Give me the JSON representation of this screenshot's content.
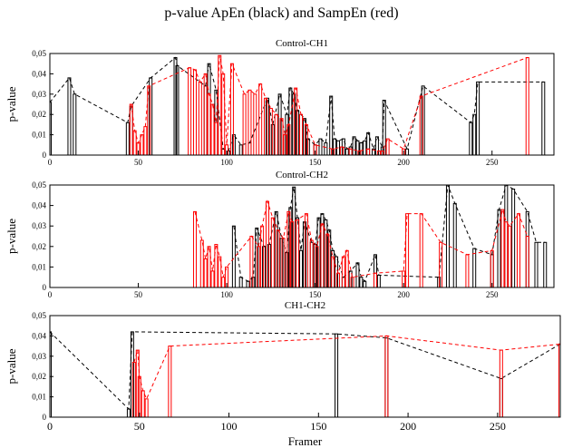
{
  "title": "p-value ApEn (black) and SampEn (red)",
  "colors": {
    "apen": "#000000",
    "sampen": "#ff0000"
  },
  "chart_data": [
    {
      "type": "bar",
      "panel_title": "Control-CH1",
      "ylabel": "p-value",
      "xlabel": "",
      "xlim": [
        0,
        285
      ],
      "ylim": [
        0,
        0.05
      ],
      "xticks": [
        0,
        50,
        100,
        150,
        200,
        250
      ],
      "yticks": [
        "0",
        "0,01",
        "0,02",
        "0,03",
        "0,04",
        "0,05"
      ],
      "series": [
        {
          "values": [
            [
              0,
              0.026
            ],
            [
              11,
              0.038
            ],
            [
              14,
              0.03
            ],
            [
              44,
              0.016
            ],
            [
              46,
              0.024
            ],
            [
              57,
              0.038
            ],
            [
              71,
              0.048
            ],
            [
              72,
              0.044
            ],
            [
              88,
              0.034
            ],
            [
              90,
              0.045
            ],
            [
              94,
              0.032
            ],
            [
              98,
              0.003
            ],
            [
              101,
              0.002
            ],
            [
              104,
              0.01
            ],
            [
              108,
              0.005
            ],
            [
              113,
              0.006
            ],
            [
              123,
              0.028
            ],
            [
              126,
              0.015
            ],
            [
              130,
              0.03
            ],
            [
              134,
              0.02
            ],
            [
              136,
              0.033
            ],
            [
              138,
              0.03
            ],
            [
              140,
              0.022
            ],
            [
              144,
              0.018
            ],
            [
              146,
              0.008
            ],
            [
              150,
              0.005
            ],
            [
              153,
              0.008
            ],
            [
              156,
              0.006
            ],
            [
              159,
              0.029
            ],
            [
              161,
              0.008
            ],
            [
              163,
              0.007
            ],
            [
              166,
              0.008
            ],
            [
              168,
              0.003
            ],
            [
              170,
              0.004
            ],
            [
              172,
              0.009
            ],
            [
              174,
              0.007
            ],
            [
              176,
              0.006
            ],
            [
              178,
              0.007
            ],
            [
              180,
              0.011
            ],
            [
              183,
              0.003
            ],
            [
              185,
              0.009
            ],
            [
              188,
              0.004
            ],
            [
              189,
              0.027
            ],
            [
              202,
              0.003
            ],
            [
              211,
              0.034
            ],
            [
              238,
              0.016
            ],
            [
              240,
              0.02
            ],
            [
              242,
              0.036
            ],
            [
              279,
              0.036
            ]
          ]
        },
        {
          "values": [
            [
              46,
              0.025
            ],
            [
              48,
              0.012
            ],
            [
              50,
              0.006
            ],
            [
              52,
              0.01
            ],
            [
              54,
              0.014
            ],
            [
              56,
              0.034
            ],
            [
              79,
              0.043
            ],
            [
              82,
              0.042
            ],
            [
              85,
              0.036
            ],
            [
              88,
              0.04
            ],
            [
              90,
              0.03
            ],
            [
              92,
              0.025
            ],
            [
              94,
              0.016
            ],
            [
              96,
              0.049
            ],
            [
              98,
              0.04
            ],
            [
              100,
              0.005
            ],
            [
              103,
              0.045
            ],
            [
              110,
              0.03
            ],
            [
              113,
              0.032
            ],
            [
              116,
              0.03
            ],
            [
              119,
              0.035
            ],
            [
              122,
              0.028
            ],
            [
              125,
              0.023
            ],
            [
              128,
              0.02
            ],
            [
              131,
              0.018
            ],
            [
              133,
              0.01
            ],
            [
              135,
              0.015
            ],
            [
              139,
              0.033
            ],
            [
              142,
              0.02
            ],
            [
              145,
              0.015
            ],
            [
              150,
              0.005
            ],
            [
              160,
              0.003
            ],
            [
              165,
              0.004
            ],
            [
              170,
              0.003
            ],
            [
              175,
              0.002
            ],
            [
              180,
              0.003
            ],
            [
              186,
              0.002
            ],
            [
              188,
              0.002
            ],
            [
              191,
              0.008
            ],
            [
              200,
              0.003
            ],
            [
              210,
              0.029
            ],
            [
              270,
              0.048
            ]
          ]
        }
      ]
    },
    {
      "type": "bar",
      "panel_title": "Control-CH2",
      "ylabel": "p-value",
      "xlabel": "",
      "xlim": [
        0,
        285
      ],
      "ylim": [
        0,
        0.05
      ],
      "xticks": [
        0,
        50,
        100,
        150,
        200,
        250
      ],
      "yticks": [
        "0",
        "0,01",
        "0,02",
        "0,03",
        "0,04",
        "0,05"
      ],
      "series": [
        {
          "values": [
            [
              104,
              0.03
            ],
            [
              108,
              0.005
            ],
            [
              112,
              0.003
            ],
            [
              115,
              0.005
            ],
            [
              117,
              0.029
            ],
            [
              121,
              0.02
            ],
            [
              124,
              0.021
            ],
            [
              128,
              0.037
            ],
            [
              131,
              0.024
            ],
            [
              134,
              0.017
            ],
            [
              136,
              0.039
            ],
            [
              138,
              0.049
            ],
            [
              140,
              0.034
            ],
            [
              142,
              0.018
            ],
            [
              144,
              0.032
            ],
            [
              148,
              0.022
            ],
            [
              150,
              0.021
            ],
            [
              152,
              0.034
            ],
            [
              154,
              0.036
            ],
            [
              156,
              0.033
            ],
            [
              158,
              0.028
            ],
            [
              160,
              0.018
            ],
            [
              162,
              0.015
            ],
            [
              166,
              0.005
            ],
            [
              170,
              0.008
            ],
            [
              174,
              0.012
            ],
            [
              176,
              0.005
            ],
            [
              178,
              0.003
            ],
            [
              184,
              0.016
            ],
            [
              186,
              0.006
            ],
            [
              220,
              0.005
            ],
            [
              225,
              0.05
            ],
            [
              229,
              0.041
            ],
            [
              240,
              0.019
            ],
            [
              250,
              0.016
            ],
            [
              254,
              0.038
            ],
            [
              258,
              0.05
            ],
            [
              262,
              0.048
            ],
            [
              270,
              0.037
            ],
            [
              275,
              0.022
            ],
            [
              280,
              0.022
            ]
          ]
        },
        {
          "values": [
            [
              82,
              0.037
            ],
            [
              86,
              0.023
            ],
            [
              88,
              0.014
            ],
            [
              90,
              0.02
            ],
            [
              92,
              0.008
            ],
            [
              94,
              0.021
            ],
            [
              96,
              0.015
            ],
            [
              98,
              0.005
            ],
            [
              100,
              0.01
            ],
            [
              114,
              0.025
            ],
            [
              118,
              0.02
            ],
            [
              120,
              0.03
            ],
            [
              123,
              0.042
            ],
            [
              126,
              0.034
            ],
            [
              129,
              0.028
            ],
            [
              132,
              0.024
            ],
            [
              135,
              0.037
            ],
            [
              137,
              0.032
            ],
            [
              140,
              0.033
            ],
            [
              145,
              0.036
            ],
            [
              148,
              0.023
            ],
            [
              151,
              0.02
            ],
            [
              154,
              0.031
            ],
            [
              157,
              0.026
            ],
            [
              160,
              0.015
            ],
            [
              163,
              0.007
            ],
            [
              166,
              0.015
            ],
            [
              168,
              0.018
            ],
            [
              171,
              0.005
            ],
            [
              184,
              0.007
            ],
            [
              200,
              0.008
            ],
            [
              202,
              0.036
            ],
            [
              210,
              0.036
            ],
            [
              221,
              0.022
            ],
            [
              236,
              0.016
            ],
            [
              250,
              0.018
            ],
            [
              256,
              0.038
            ],
            [
              258,
              0.032
            ],
            [
              260,
              0.03
            ],
            [
              265,
              0.036
            ],
            [
              270,
              0.025
            ]
          ]
        }
      ]
    },
    {
      "type": "bar",
      "panel_title": "CH1-CH2",
      "ylabel": "p-value",
      "xlabel": "Framer",
      "xlim": [
        0,
        285
      ],
      "ylim": [
        0,
        0.05
      ],
      "xticks": [
        0,
        50,
        100,
        150,
        200,
        250
      ],
      "yticks": [
        "0",
        "0,01",
        "0,02",
        "0,03",
        "0,04",
        "0,05"
      ],
      "series": [
        {
          "values": [
            [
              0,
              0.042
            ],
            [
              44,
              0.004
            ],
            [
              46,
              0.042
            ],
            [
              160,
              0.041
            ],
            [
              188,
              0.039
            ],
            [
              252,
              0.019
            ],
            [
              285,
              0.036
            ]
          ]
        },
        {
          "values": [
            [
              47,
              0.027
            ],
            [
              49,
              0.033
            ],
            [
              50,
              0.02
            ],
            [
              52,
              0.013
            ],
            [
              54,
              0.009
            ],
            [
              67,
              0.035
            ],
            [
              188,
              0.04
            ],
            [
              252,
              0.033
            ],
            [
              285,
              0.036
            ]
          ]
        }
      ]
    }
  ]
}
